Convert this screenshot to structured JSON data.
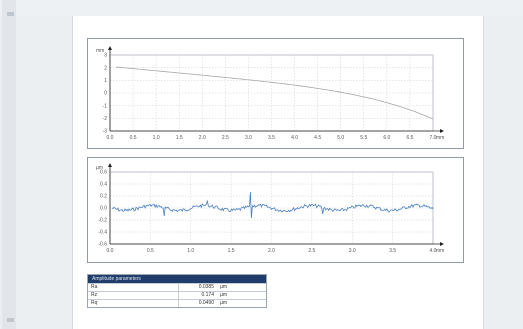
{
  "profile_chart": {
    "y_unit": "mm",
    "y_ticks": [
      "3",
      "2",
      "1",
      "0",
      "-1",
      "-2",
      "-3"
    ],
    "x_ticks": [
      "0.0",
      "0.5",
      "1.0",
      "1.5",
      "2.0",
      "2.5",
      "3.0",
      "3.5",
      "4.0",
      "4.5",
      "5.0",
      "5.5",
      "6.0",
      "6.5",
      "7.0"
    ],
    "x_unit": "mm",
    "line_color": "#a7a7a7"
  },
  "roughness_chart": {
    "y_unit": "µm",
    "y_ticks": [
      "0.6",
      "0.4",
      "0.2",
      "0.0",
      "-0.2",
      "-0.4",
      "-0.6"
    ],
    "x_ticks": [
      "0.0",
      "0.5",
      "1.0",
      "1.5",
      "2.0",
      "2.5",
      "3.0",
      "3.5",
      "4.0"
    ],
    "x_unit": "mm",
    "line_color": "#4a7fc0"
  },
  "parameter_table": {
    "title": "Amplitude parameters",
    "rows": [
      {
        "name": "Ra",
        "value": "0.0385",
        "unit": "µm"
      },
      {
        "name": "Rz",
        "value": "0.174",
        "unit": "µm"
      },
      {
        "name": "Rq",
        "value": "0.0490",
        "unit": "µm"
      }
    ]
  },
  "colors": {
    "header": "#1f3c6a",
    "grid": "#c8ced6",
    "background": "#e9edf1"
  }
}
